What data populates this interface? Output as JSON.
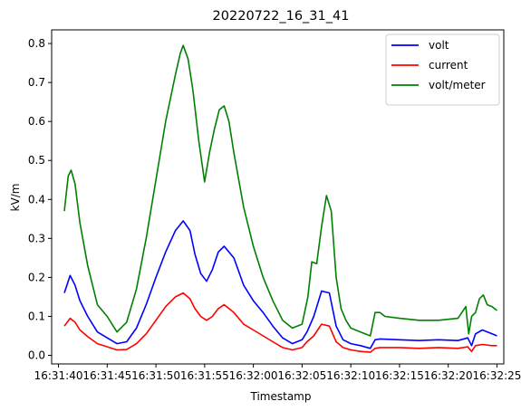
{
  "chart_data": {
    "type": "line",
    "title": "20220722_16_31_41",
    "xlabel": "Timestamp",
    "ylabel": "kV/m",
    "x_ticks": [
      "16:31:40",
      "16:31:45",
      "16:31:50",
      "16:31:55",
      "16:32:00",
      "16:32:05",
      "16:32:10",
      "16:32:15",
      "16:32:20",
      "16:32:25"
    ],
    "x_tick_seconds": [
      0,
      5,
      10,
      15,
      20,
      25,
      30,
      35,
      40,
      45
    ],
    "xlim_seconds": [
      -0.7,
      45.7
    ],
    "y_ticks": [
      "0.0",
      "0.1",
      "0.2",
      "0.3",
      "0.4",
      "0.5",
      "0.6",
      "0.7",
      "0.8"
    ],
    "y_tick_values": [
      0.0,
      0.1,
      0.2,
      0.3,
      0.4,
      0.5,
      0.6,
      0.7,
      0.8
    ],
    "ylim": [
      -0.022,
      0.835
    ],
    "legend_position": "top-right",
    "grid": false,
    "series": [
      {
        "name": "volt",
        "color": "#0000ff",
        "x": [
          0.6,
          1.2,
          1.7,
          2.2,
          3.0,
          4.0,
          5.0,
          6.0,
          7.0,
          8.0,
          9.0,
          10.0,
          11.0,
          12.0,
          12.8,
          13.5,
          14.0,
          14.6,
          15.2,
          15.8,
          16.4,
          17.0,
          18.0,
          19.0,
          20.0,
          21.0,
          22.0,
          23.0,
          24.0,
          25.0,
          25.5,
          26.2,
          27.0,
          27.8,
          28.5,
          29.2,
          30.0,
          31.0,
          32.0,
          32.5,
          33.0,
          35.0,
          37.0,
          39.0,
          41.0,
          42.0,
          42.4,
          42.8,
          43.5,
          44.5,
          45.0
        ],
        "y": [
          0.16,
          0.205,
          0.18,
          0.14,
          0.1,
          0.06,
          0.045,
          0.03,
          0.035,
          0.07,
          0.13,
          0.2,
          0.265,
          0.32,
          0.345,
          0.32,
          0.26,
          0.21,
          0.19,
          0.22,
          0.265,
          0.28,
          0.25,
          0.18,
          0.14,
          0.11,
          0.075,
          0.045,
          0.03,
          0.04,
          0.06,
          0.1,
          0.165,
          0.16,
          0.075,
          0.04,
          0.03,
          0.025,
          0.018,
          0.04,
          0.042,
          0.04,
          0.038,
          0.04,
          0.038,
          0.045,
          0.025,
          0.055,
          0.065,
          0.055,
          0.05
        ]
      },
      {
        "name": "current",
        "color": "#ff0000",
        "x": [
          0.6,
          1.2,
          1.7,
          2.2,
          3.0,
          4.0,
          5.0,
          6.0,
          7.0,
          8.0,
          9.0,
          10.0,
          11.0,
          12.0,
          12.8,
          13.5,
          14.0,
          14.6,
          15.2,
          15.8,
          16.4,
          17.0,
          18.0,
          19.0,
          20.0,
          21.0,
          22.0,
          23.0,
          24.0,
          25.0,
          25.5,
          26.2,
          27.0,
          27.8,
          28.5,
          29.2,
          30.0,
          31.0,
          32.0,
          32.5,
          33.0,
          35.0,
          37.0,
          39.0,
          41.0,
          42.0,
          42.4,
          42.8,
          43.5,
          44.5,
          45.0
        ],
        "y": [
          0.075,
          0.095,
          0.085,
          0.065,
          0.048,
          0.03,
          0.022,
          0.014,
          0.015,
          0.03,
          0.055,
          0.09,
          0.125,
          0.15,
          0.16,
          0.145,
          0.12,
          0.1,
          0.09,
          0.1,
          0.12,
          0.13,
          0.11,
          0.08,
          0.065,
          0.05,
          0.035,
          0.02,
          0.014,
          0.02,
          0.035,
          0.05,
          0.08,
          0.075,
          0.035,
          0.02,
          0.014,
          0.01,
          0.008,
          0.018,
          0.02,
          0.02,
          0.018,
          0.02,
          0.018,
          0.022,
          0.01,
          0.025,
          0.028,
          0.025,
          0.025
        ]
      },
      {
        "name": "volt/meter",
        "color": "#008000",
        "x": [
          0.6,
          1.0,
          1.3,
          1.7,
          2.2,
          3.0,
          4.0,
          5.0,
          6.0,
          7.0,
          8.0,
          9.0,
          10.0,
          11.0,
          12.0,
          12.5,
          12.8,
          13.3,
          13.8,
          14.4,
          15.0,
          15.5,
          16.0,
          16.5,
          17.0,
          17.5,
          18.0,
          19.0,
          20.0,
          21.0,
          22.0,
          23.0,
          24.0,
          25.0,
          25.6,
          26.0,
          26.5,
          27.0,
          27.5,
          28.0,
          28.5,
          29.0,
          29.5,
          30.0,
          31.0,
          32.0,
          32.5,
          33.0,
          33.5,
          35.0,
          37.0,
          39.0,
          41.0,
          41.8,
          42.1,
          42.4,
          42.8,
          43.2,
          43.6,
          44.0,
          44.5,
          45.0
        ],
        "y": [
          0.37,
          0.46,
          0.475,
          0.44,
          0.34,
          0.23,
          0.13,
          0.1,
          0.06,
          0.085,
          0.17,
          0.3,
          0.45,
          0.6,
          0.72,
          0.775,
          0.795,
          0.76,
          0.68,
          0.55,
          0.445,
          0.52,
          0.58,
          0.63,
          0.64,
          0.6,
          0.52,
          0.38,
          0.28,
          0.2,
          0.14,
          0.09,
          0.07,
          0.08,
          0.15,
          0.24,
          0.235,
          0.33,
          0.41,
          0.37,
          0.2,
          0.12,
          0.09,
          0.07,
          0.06,
          0.05,
          0.11,
          0.11,
          0.1,
          0.095,
          0.09,
          0.09,
          0.095,
          0.125,
          0.055,
          0.1,
          0.11,
          0.145,
          0.155,
          0.13,
          0.125,
          0.115
        ]
      }
    ]
  }
}
